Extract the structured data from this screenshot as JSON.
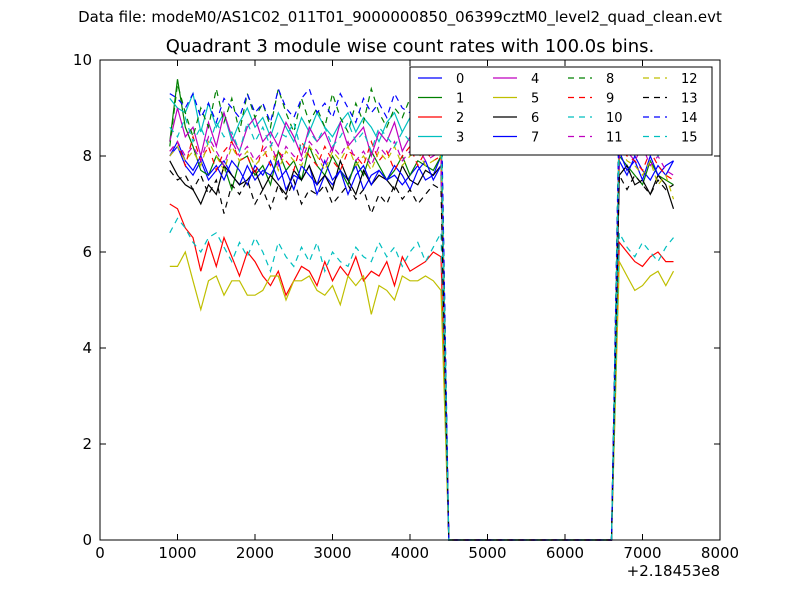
{
  "suptitle": "Data file: modeM0/AS1C02_011T01_9000000850_06399cztM0_level2_quad_clean.evt",
  "chart_data": {
    "type": "line",
    "title": "Quadrant 3 module wise count rates with 100.0s bins.",
    "xlabel": "",
    "ylabel": "",
    "x_offset_label": "+2.18453e8",
    "xlim": [
      0,
      8000
    ],
    "ylim": [
      0,
      10
    ],
    "x_ticks": [
      0,
      1000,
      2000,
      3000,
      4000,
      5000,
      6000,
      7000,
      8000
    ],
    "y_ticks": [
      0,
      2,
      4,
      6,
      8,
      10
    ],
    "grid": false,
    "legend_position": "top-right",
    "legend_columns": 4,
    "segments": [
      {
        "x_start": 900,
        "x_end": 4400
      },
      {
        "x_start": 4500,
        "x_end": 6600,
        "note_zero": true
      },
      {
        "x_start": 6700,
        "x_end": 7400
      }
    ],
    "series": [
      {
        "name": "0",
        "color": "#0000ff",
        "style": "solid",
        "seg1": [
          8.0,
          8.2,
          7.8,
          7.6,
          7.9,
          7.5,
          7.7,
          7.9,
          7.6,
          7.4,
          7.8,
          7.5,
          7.7,
          7.6,
          7.9,
          7.3,
          7.6,
          7.5,
          7.8,
          7.2,
          7.6,
          7.4,
          7.7,
          7.5,
          7.8,
          7.3,
          7.6,
          7.7,
          7.5,
          7.6,
          7.4,
          7.6,
          7.8,
          7.5,
          7.6,
          8.0
        ],
        "seg3": [
          7.9,
          7.6,
          8.0,
          7.7,
          7.5,
          7.8,
          7.6,
          7.9
        ]
      },
      {
        "name": "1",
        "color": "#008000",
        "style": "solid",
        "seg1": [
          8.3,
          9.6,
          8.6,
          8.2,
          7.7,
          7.6,
          8.0,
          7.8,
          7.3,
          7.9,
          8.0,
          7.6,
          7.8,
          7.4,
          8.1,
          7.7,
          7.9,
          7.5,
          8.2,
          7.8,
          7.6,
          8.0,
          7.7,
          7.4,
          7.9,
          7.6,
          8.1,
          7.8,
          7.5,
          7.7,
          8.0,
          7.6,
          7.9,
          7.8,
          7.7,
          8.0
        ],
        "seg3": [
          8.0,
          7.8,
          7.6,
          7.4,
          7.9,
          7.6,
          7.5,
          7.4
        ]
      },
      {
        "name": "2",
        "color": "#ff0000",
        "style": "solid",
        "seg1": [
          7.0,
          6.9,
          6.5,
          6.3,
          5.6,
          6.2,
          5.7,
          6.3,
          5.9,
          5.5,
          6.0,
          5.8,
          5.5,
          5.3,
          5.6,
          5.1,
          5.4,
          5.7,
          5.6,
          5.3,
          5.8,
          5.4,
          5.7,
          5.5,
          5.9,
          5.4,
          5.6,
          5.5,
          5.8,
          5.3,
          5.9,
          5.6,
          5.7,
          5.8,
          6.0,
          5.9
        ],
        "seg3": [
          6.2,
          6.0,
          5.8,
          5.7,
          5.9,
          6.0,
          5.8,
          5.8
        ]
      },
      {
        "name": "3",
        "color": "#00bfbf",
        "style": "solid",
        "seg1": [
          9.2,
          9.0,
          8.9,
          9.3,
          8.5,
          9.1,
          8.6,
          8.9,
          8.3,
          8.7,
          9.0,
          8.6,
          8.8,
          8.4,
          8.9,
          8.6,
          8.3,
          8.8,
          8.5,
          8.9,
          8.6,
          8.4,
          8.7,
          8.9,
          8.5,
          8.8,
          8.6,
          8.3,
          8.7,
          8.9,
          8.5,
          8.8,
          8.6,
          8.4,
          8.9,
          8.8
        ],
        "seg3": [
          8.8,
          8.5,
          8.9,
          8.6,
          8.2,
          8.7,
          8.6,
          8.4
        ]
      },
      {
        "name": "4",
        "color": "#bf00bf",
        "style": "solid",
        "seg1": [
          8.3,
          9.0,
          8.4,
          8.6,
          8.0,
          8.7,
          8.2,
          8.9,
          8.4,
          8.1,
          8.6,
          8.8,
          8.3,
          8.5,
          8.2,
          8.7,
          8.4,
          8.0,
          8.6,
          8.3,
          8.5,
          8.1,
          8.7,
          8.2,
          8.4,
          8.6,
          8.0,
          8.5,
          8.3,
          8.7,
          8.1,
          8.4,
          8.6,
          8.2,
          8.5,
          8.3
        ],
        "seg3": [
          8.5,
          8.2,
          8.4,
          8.6,
          8.3,
          8.1,
          8.5,
          8.4
        ]
      },
      {
        "name": "5",
        "color": "#bfbf00",
        "style": "solid",
        "seg1": [
          5.7,
          5.7,
          6.0,
          5.4,
          4.8,
          5.4,
          5.5,
          5.1,
          5.4,
          5.4,
          5.1,
          5.1,
          5.2,
          5.5,
          5.5,
          5.0,
          5.4,
          5.4,
          5.5,
          5.2,
          5.1,
          5.3,
          4.9,
          5.5,
          5.3,
          5.5,
          4.7,
          5.3,
          5.2,
          5.0,
          5.5,
          5.4,
          5.4,
          5.5,
          5.4,
          5.2
        ],
        "seg3": [
          5.8,
          5.5,
          5.2,
          5.3,
          5.5,
          5.6,
          5.3,
          5.6
        ]
      },
      {
        "name": "6",
        "color": "#000000",
        "style": "solid",
        "seg1": [
          7.9,
          7.6,
          7.4,
          7.3,
          7.0,
          7.4,
          7.2,
          7.8,
          7.6,
          7.4,
          7.5,
          7.7,
          7.3,
          7.6,
          7.4,
          7.2,
          7.7,
          7.5,
          7.8,
          7.4,
          7.6,
          7.3,
          7.9,
          7.5,
          7.2,
          7.7,
          7.4,
          7.6,
          7.5,
          7.3,
          7.8,
          7.5,
          7.4,
          7.7,
          7.6,
          7.8
        ],
        "seg3": [
          7.6,
          7.8,
          7.4,
          7.5,
          7.2,
          7.6,
          7.4,
          6.9
        ]
      },
      {
        "name": "7",
        "color": "#0000ff",
        "style": "solid",
        "seg1": [
          8.0,
          8.3,
          7.9,
          7.7,
          8.0,
          7.6,
          7.8,
          7.5,
          7.9,
          7.7,
          7.4,
          7.8,
          7.6,
          7.9,
          7.5,
          7.7,
          7.3,
          7.8,
          7.6,
          7.4,
          7.9,
          7.5,
          7.7,
          7.2,
          7.6,
          7.8,
          7.4,
          7.7,
          7.5,
          7.8,
          7.6,
          7.3,
          7.7,
          7.9,
          7.5,
          7.8
        ],
        "seg3": [
          8.1,
          7.7,
          7.9,
          7.5,
          8.0,
          7.6,
          7.8,
          7.9
        ]
      },
      {
        "name": "8",
        "color": "#008000",
        "style": "dashed",
        "seg1": [
          8.2,
          9.5,
          8.9,
          8.4,
          9.0,
          8.6,
          9.4,
          8.7,
          9.2,
          8.5,
          9.3,
          8.8,
          9.1,
          8.6,
          9.4,
          8.9,
          8.5,
          9.2,
          8.7,
          9.0,
          8.6,
          9.3,
          8.8,
          8.5,
          9.1,
          8.7,
          9.4,
          8.9,
          8.6,
          9.0,
          8.8,
          9.2,
          8.5,
          8.9,
          8.7,
          9.3
        ],
        "seg3": [
          9.2,
          8.6,
          9.0,
          8.4,
          8.8,
          8.2,
          8.6,
          8.3
        ]
      },
      {
        "name": "9",
        "color": "#ff0000",
        "style": "dashed",
        "seg1": [
          8.1,
          8.3,
          7.8,
          8.4,
          7.9,
          8.2,
          7.7,
          8.1,
          8.3,
          7.9,
          8.0,
          7.6,
          8.2,
          7.8,
          8.1,
          7.9,
          7.7,
          8.3,
          8.0,
          7.8,
          8.2,
          7.9,
          7.7,
          8.1,
          8.0,
          7.8,
          8.3,
          7.9,
          8.1,
          7.7,
          8.0,
          8.2,
          7.8,
          8.1,
          7.9,
          8.0
        ],
        "seg3": [
          8.2,
          8.0,
          7.9,
          7.7,
          8.1,
          7.8,
          7.6,
          7.5
        ]
      },
      {
        "name": "10",
        "color": "#00bfbf",
        "style": "dashed",
        "seg1": [
          6.4,
          6.7,
          6.5,
          6.2,
          6.0,
          6.3,
          6.4,
          6.1,
          5.8,
          6.2,
          5.9,
          6.3,
          6.0,
          5.6,
          6.2,
          5.9,
          5.7,
          6.1,
          5.8,
          6.2,
          5.6,
          6.0,
          5.8,
          5.7,
          6.1,
          5.9,
          5.8,
          6.2,
          5.9,
          6.1,
          5.7,
          6.0,
          6.2,
          5.8,
          6.1,
          6.4
        ],
        "seg3": [
          6.4,
          6.1,
          5.9,
          6.2,
          6.0,
          5.8,
          6.1,
          6.3
        ]
      },
      {
        "name": "11",
        "color": "#bf00bf",
        "style": "dashed",
        "seg1": [
          8.1,
          8.3,
          8.0,
          8.2,
          7.9,
          8.4,
          8.1,
          7.8,
          8.3,
          8.0,
          8.2,
          7.9,
          8.1,
          8.3,
          7.8,
          8.2,
          8.0,
          7.9,
          8.3,
          8.1,
          7.8,
          8.2,
          8.0,
          8.3,
          7.9,
          8.1,
          7.8,
          8.2,
          8.0,
          8.3,
          7.9,
          8.1,
          8.2,
          7.9,
          8.0,
          8.1
        ],
        "seg3": [
          8.3,
          8.1,
          7.9,
          8.2,
          7.8,
          8.0,
          7.7,
          7.6
        ]
      },
      {
        "name": "12",
        "color": "#bfbf00",
        "style": "dashed",
        "seg1": [
          8.0,
          8.2,
          7.9,
          8.1,
          7.8,
          8.3,
          8.0,
          7.7,
          8.2,
          7.9,
          8.1,
          7.8,
          8.0,
          8.2,
          7.7,
          8.1,
          7.9,
          7.8,
          8.2,
          8.0,
          7.7,
          8.1,
          7.9,
          8.2,
          7.8,
          8.0,
          7.7,
          8.1,
          7.9,
          8.2,
          7.8,
          8.0,
          8.1,
          7.8,
          7.9,
          8.0
        ],
        "seg3": [
          8.2,
          7.9,
          7.8,
          7.6,
          7.9,
          7.4,
          7.6,
          7.1
        ]
      },
      {
        "name": "13",
        "color": "#000000",
        "style": "dashed",
        "seg1": [
          7.7,
          7.5,
          7.6,
          7.3,
          7.6,
          7.2,
          7.5,
          6.8,
          7.4,
          7.2,
          7.5,
          7.0,
          7.3,
          6.9,
          7.4,
          7.1,
          7.5,
          7.0,
          7.3,
          7.2,
          7.4,
          7.0,
          7.2,
          7.4,
          7.1,
          7.3,
          6.8,
          7.2,
          7.0,
          7.4,
          7.1,
          7.3,
          7.0,
          7.2,
          7.4,
          7.3
        ],
        "seg3": [
          7.6,
          7.3,
          7.6,
          7.4,
          7.2,
          7.5,
          7.3,
          7.4
        ]
      },
      {
        "name": "14",
        "color": "#0000ff",
        "style": "dashed",
        "seg1": [
          9.3,
          9.2,
          9.0,
          9.3,
          8.8,
          9.1,
          8.7,
          9.2,
          9.0,
          8.8,
          9.3,
          8.9,
          9.1,
          8.7,
          9.4,
          9.0,
          8.8,
          9.2,
          9.4,
          8.9,
          9.1,
          8.8,
          9.3,
          9.0,
          8.7,
          9.2,
          8.9,
          9.1,
          8.8,
          9.3,
          9.0,
          8.9,
          9.2,
          8.8,
          9.1,
          9.4
        ],
        "seg3": [
          9.1,
          8.8,
          9.6,
          9.0,
          8.7,
          9.2,
          8.9,
          9.0
        ]
      },
      {
        "name": "15",
        "color": "#00bfbf",
        "style": "dashed",
        "seg1": [
          8.6,
          8.4,
          8.8,
          8.3,
          8.6,
          8.2,
          8.7,
          8.4,
          8.5,
          8.1,
          8.7,
          8.3,
          8.6,
          8.2,
          8.5,
          8.4,
          8.7,
          8.1,
          8.5,
          8.3,
          8.6,
          8.2,
          8.4,
          8.7,
          8.3,
          8.5,
          8.1,
          8.6,
          8.4,
          8.2,
          8.5,
          8.3,
          8.7,
          8.4,
          8.5,
          8.6
        ],
        "seg3": [
          8.6,
          8.3,
          8.7,
          8.2,
          8.4,
          8.0,
          8.3,
          8.2
        ]
      }
    ]
  }
}
